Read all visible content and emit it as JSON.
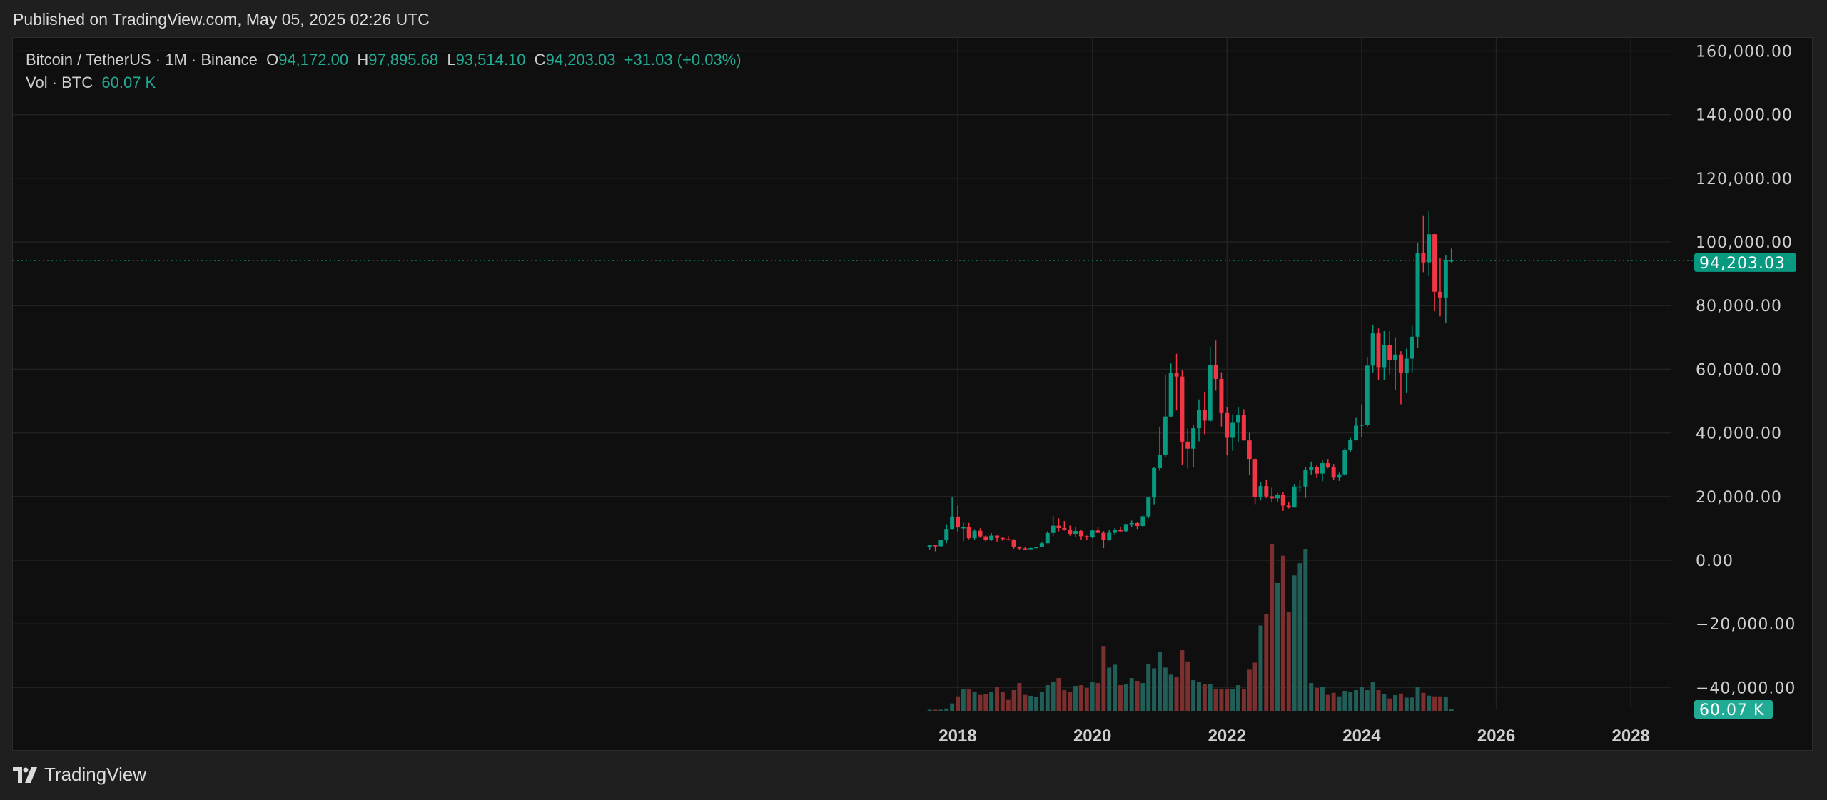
{
  "header": {
    "published": "Published on TradingView.com, May 05, 2025 02:26 UTC"
  },
  "legend": {
    "symbol": "Bitcoin / TetherUS · 1M · Binance",
    "o_label": "O",
    "o": "94,172.00",
    "h_label": "H",
    "h": "97,895.68",
    "l_label": "L",
    "l": "93,514.10",
    "c_label": "C",
    "c": "94,203.03",
    "change": "+31.03 (+0.03%)",
    "vol_label": "Vol · BTC",
    "vol": "60.07 K"
  },
  "footer": {
    "brand": "TradingView"
  },
  "colors": {
    "up": "#089981",
    "down": "#f23645",
    "vol_up": "#225e58",
    "vol_down": "#7c2f2f",
    "price_label": "#089981",
    "vol_label": "#22ab94",
    "background": "#0f0f0f",
    "grid": "#222222"
  },
  "chart_data": {
    "type": "candlestick",
    "title": "Bitcoin / TetherUS · 1M · Binance",
    "ylim": [
      -40000,
      160000
    ],
    "y_ticks": [
      "160,000.00",
      "140,000.00",
      "120,000.00",
      "100,000.00",
      "80,000.00",
      "60,000.00",
      "40,000.00",
      "20,000.00",
      "0.00",
      "−20,000.00",
      "−40,000.00"
    ],
    "y_tick_values": [
      160000,
      140000,
      120000,
      100000,
      80000,
      60000,
      40000,
      20000,
      0,
      -20000,
      -40000
    ],
    "x_ticks": [
      "2018",
      "2020",
      "2022",
      "2024",
      "2026",
      "2028"
    ],
    "grid": true,
    "last_price": 94203.03,
    "last_price_label": "94,203.03",
    "last_volume_label": "60.07 K",
    "candles_columns": [
      "month",
      "open",
      "high",
      "low",
      "close",
      "volume_k_btc"
    ],
    "candles": [
      [
        "2017-08",
        4261,
        4745,
        3400,
        4724,
        0
      ],
      [
        "2017-09",
        4690,
        4939,
        2817,
        4378,
        30
      ],
      [
        "2017-10",
        4378,
        6470,
        4110,
        6463,
        30
      ],
      [
        "2017-11",
        6463,
        11300,
        5325,
        9839,
        100
      ],
      [
        "2017-12",
        9837,
        19798,
        9722,
        13716,
        310
      ],
      [
        "2018-01",
        13716,
        17176,
        9035,
        10285,
        610
      ],
      [
        "2018-02",
        10285,
        11786,
        6000,
        10326,
        900
      ],
      [
        "2018-03",
        10326,
        11710,
        6600,
        6923,
        900
      ],
      [
        "2018-04",
        6922,
        9765,
        6430,
        9246,
        810
      ],
      [
        "2018-05",
        9246,
        10020,
        7032,
        7494,
        670
      ],
      [
        "2018-06",
        7500,
        7780,
        5755,
        6391,
        690
      ],
      [
        "2018-07",
        6391,
        8507,
        6070,
        7730,
        810
      ],
      [
        "2018-08",
        7735,
        7750,
        5880,
        7011,
        1020
      ],
      [
        "2018-09",
        7011,
        7410,
        6100,
        6626,
        810
      ],
      [
        "2018-10",
        6626,
        7680,
        6205,
        6371,
        460
      ],
      [
        "2018-11",
        6370,
        6615,
        3652,
        4041,
        870
      ],
      [
        "2018-12",
        4041,
        4313,
        3156,
        3742,
        1170
      ],
      [
        "2019-01",
        3701,
        4140,
        3349,
        3434,
        670
      ],
      [
        "2019-02",
        3434,
        4198,
        3373,
        3813,
        630
      ],
      [
        "2019-03",
        3814,
        4140,
        3689,
        4105,
        580
      ],
      [
        "2019-04",
        4102,
        5600,
        4067,
        5320,
        810
      ],
      [
        "2019-05",
        5321,
        9074,
        5320,
        8555,
        1080
      ],
      [
        "2019-06",
        8555,
        13970,
        7564,
        10855,
        1230
      ],
      [
        "2019-07",
        10854,
        13183,
        9070,
        10085,
        1380
      ],
      [
        "2019-08",
        10084,
        12325,
        9320,
        9630,
        870
      ],
      [
        "2019-09",
        9630,
        10905,
        7710,
        8293,
        810
      ],
      [
        "2019-10",
        8294,
        10370,
        7300,
        9199,
        1050
      ],
      [
        "2019-11",
        9198,
        9505,
        6515,
        7546,
        1080
      ],
      [
        "2019-12",
        7546,
        7750,
        6435,
        7195,
        960
      ],
      [
        "2020-01",
        7195,
        9578,
        6871,
        9352,
        1230
      ],
      [
        "2020-02",
        9351,
        10500,
        8445,
        8599,
        1170
      ],
      [
        "2020-03",
        8599,
        9188,
        3782,
        6410,
        2730
      ],
      [
        "2020-04",
        6412,
        9460,
        6150,
        8620,
        1820
      ],
      [
        "2020-05",
        8620,
        10080,
        8106,
        9448,
        1940
      ],
      [
        "2020-06",
        9448,
        10380,
        8833,
        9138,
        1080
      ],
      [
        "2020-07",
        9138,
        11444,
        8893,
        11335,
        1110
      ],
      [
        "2020-08",
        11335,
        12468,
        10518,
        11649,
        1380
      ],
      [
        "2020-09",
        11649,
        12050,
        9825,
        10776,
        1260
      ],
      [
        "2020-10",
        10776,
        14100,
        10374,
        13791,
        1170
      ],
      [
        "2020-11",
        13791,
        19863,
        13195,
        19695,
        1970
      ],
      [
        "2020-12",
        19695,
        29300,
        17572,
        28923,
        1790
      ],
      [
        "2021-01",
        28923,
        41950,
        28130,
        33092,
        2460
      ],
      [
        "2021-02",
        33092,
        58352,
        32296,
        45135,
        1820
      ],
      [
        "2021-03",
        45134,
        61844,
        44950,
        58740,
        1520
      ],
      [
        "2021-04",
        58739,
        64854,
        47044,
        57694,
        1440
      ],
      [
        "2021-05",
        57697,
        59600,
        30000,
        37253,
        2550
      ],
      [
        "2021-06",
        37254,
        41330,
        28805,
        35045,
        2080
      ],
      [
        "2021-07",
        35046,
        42448,
        29278,
        41461,
        1290
      ],
      [
        "2021-08",
        41461,
        50500,
        37332,
        47101,
        1200
      ],
      [
        "2021-09",
        47100,
        52920,
        39600,
        43824,
        1110
      ],
      [
        "2021-10",
        43820,
        67000,
        43283,
        61299,
        1140
      ],
      [
        "2021-11",
        61300,
        69000,
        53256,
        56950,
        930
      ],
      [
        "2021-12",
        56951,
        59053,
        42000,
        46216,
        910
      ],
      [
        "2022-01",
        46216,
        47990,
        32917,
        38466,
        900
      ],
      [
        "2022-02",
        38466,
        45821,
        34322,
        43160,
        930
      ],
      [
        "2022-03",
        43160,
        48189,
        37155,
        45510,
        1080
      ],
      [
        "2022-04",
        45510,
        47444,
        37578,
        37630,
        930
      ],
      [
        "2022-05",
        37631,
        40023,
        26700,
        31801,
        1730
      ],
      [
        "2022-06",
        31801,
        31982,
        17622,
        19942,
        2030
      ],
      [
        "2022-07",
        19943,
        24668,
        18781,
        23293,
        3590
      ],
      [
        "2022-08",
        23296,
        25211,
        19520,
        20050,
        4080
      ],
      [
        "2022-09",
        20050,
        22799,
        18125,
        19423,
        7030
      ],
      [
        "2022-10",
        19423,
        21096,
        18190,
        20491,
        5380
      ],
      [
        "2022-11",
        20491,
        21480,
        15476,
        17164,
        6530
      ],
      [
        "2022-12",
        17165,
        18387,
        16256,
        16542,
        4170
      ],
      [
        "2023-01",
        16542,
        23960,
        16499,
        23125,
        5700
      ],
      [
        "2023-02",
        23125,
        25250,
        21351,
        23142,
        6210
      ],
      [
        "2023-03",
        23142,
        29184,
        19549,
        28465,
        6820
      ],
      [
        "2023-04",
        28465,
        31000,
        26942,
        29233,
        1170
      ],
      [
        "2023-05",
        29233,
        29820,
        25811,
        27210,
        960
      ],
      [
        "2023-06",
        27210,
        31431,
        24800,
        30472,
        1020
      ],
      [
        "2023-07",
        30472,
        31804,
        28861,
        29232,
        670
      ],
      [
        "2023-08",
        29232,
        30244,
        25166,
        25941,
        760
      ],
      [
        "2023-09",
        25941,
        27483,
        24901,
        26963,
        610
      ],
      [
        "2023-10",
        26962,
        35280,
        26538,
        34639,
        840
      ],
      [
        "2023-11",
        34639,
        38450,
        34097,
        37723,
        780
      ],
      [
        "2023-12",
        37723,
        44700,
        37615,
        42284,
        870
      ],
      [
        "2024-01",
        42284,
        48969,
        38555,
        42580,
        1020
      ],
      [
        "2024-02",
        42580,
        63913,
        41884,
        61131,
        870
      ],
      [
        "2024-03",
        61131,
        73777,
        59005,
        71280,
        1230
      ],
      [
        "2024-04",
        71280,
        72797,
        56552,
        60672,
        870
      ],
      [
        "2024-05",
        60672,
        71979,
        56555,
        67540,
        700
      ],
      [
        "2024-06",
        67541,
        71982,
        58402,
        62772,
        520
      ],
      [
        "2024-07",
        62772,
        70080,
        53485,
        64628,
        660
      ],
      [
        "2024-08",
        64628,
        65660,
        49000,
        58974,
        730
      ],
      [
        "2024-09",
        58974,
        66498,
        52550,
        63327,
        560
      ],
      [
        "2024-10",
        63327,
        73620,
        58946,
        70215,
        560
      ],
      [
        "2024-11",
        70216,
        99588,
        66835,
        96407,
        990
      ],
      [
        "2024-12",
        96408,
        108353,
        90500,
        93576,
        760
      ],
      [
        "2025-01",
        93576,
        109588,
        89256,
        102429,
        640
      ],
      [
        "2025-02",
        102429,
        102500,
        78258,
        84350,
        610
      ],
      [
        "2025-03",
        84350,
        95000,
        76606,
        82550,
        610
      ],
      [
        "2025-04",
        82550,
        95758,
        74508,
        94172,
        580
      ],
      [
        "2025-05",
        94172,
        97895.68,
        93514.1,
        94203.03,
        60.07
      ]
    ]
  }
}
